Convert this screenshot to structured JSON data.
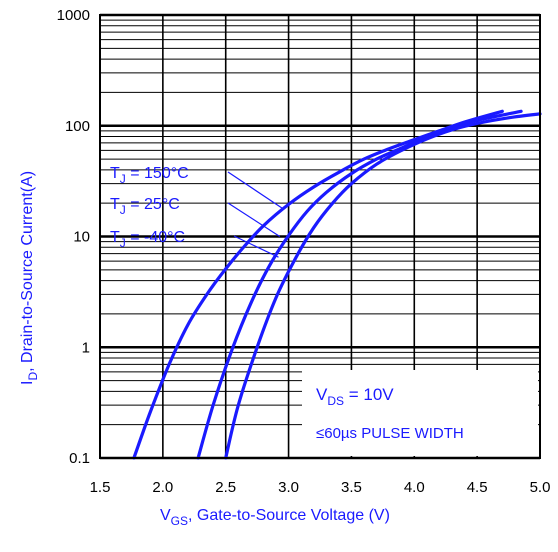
{
  "chart_data": {
    "type": "line",
    "xlabel": {
      "main": "V",
      "sub": "GS",
      "rest": ", Gate-to-Source Voltage (V)"
    },
    "ylabel": {
      "main": "I",
      "sub": "D",
      "rest": ", Drain-to-Source Current(A)"
    },
    "xlim": [
      1.5,
      5.0
    ],
    "ylim": [
      0.1,
      1000
    ],
    "yscale": "log",
    "xticks": [
      "1.5",
      "2.0",
      "2.5",
      "3.0",
      "3.5",
      "4.0",
      "4.5",
      "5.0"
    ],
    "xtick_values": [
      1.5,
      2.0,
      2.5,
      3.0,
      3.5,
      4.0,
      4.5,
      5.0
    ],
    "yticks": [
      "0.1",
      "1",
      "10",
      "100",
      "1000"
    ],
    "ytick_values": [
      0.1,
      1,
      10,
      100,
      1000
    ],
    "grid": true,
    "series_color": "#1a1aff",
    "series": [
      {
        "label": {
          "pre": "T",
          "sub": "J",
          "post": " = 150°C"
        },
        "x": [
          1.77,
          1.9,
          2.05,
          2.2,
          2.35,
          2.5,
          2.65,
          2.8,
          3.0,
          3.2,
          3.4,
          3.6,
          3.8,
          4.0,
          4.2,
          4.4,
          4.7
        ],
        "y": [
          0.1,
          0.26,
          0.7,
          1.6,
          3.0,
          5.1,
          8.2,
          12.5,
          19.5,
          28,
          38,
          50,
          62,
          75,
          90,
          108,
          135
        ]
      },
      {
        "label": {
          "pre": "T",
          "sub": "J",
          "post": " = 25°C"
        },
        "x": [
          2.28,
          2.4,
          2.55,
          2.7,
          2.85,
          3.0,
          3.15,
          3.3,
          3.5,
          3.7,
          3.9,
          4.1,
          4.3,
          4.5,
          4.85
        ],
        "y": [
          0.1,
          0.3,
          0.95,
          2.5,
          5.5,
          10.2,
          17,
          25,
          37,
          50,
          63,
          80,
          97,
          112,
          135
        ]
      },
      {
        "label": {
          "pre": "T",
          "sub": "J",
          "post": " = -40°C"
        },
        "x": [
          2.5,
          2.6,
          2.75,
          2.9,
          3.05,
          3.2,
          3.35,
          3.5,
          3.7,
          3.9,
          4.1,
          4.3,
          4.5,
          4.75,
          5.0
        ],
        "y": [
          0.1,
          0.3,
          1.0,
          2.8,
          6.2,
          12,
          20,
          30,
          45,
          60,
          76,
          92,
          105,
          118,
          128
        ]
      }
    ],
    "conditions": {
      "vds": {
        "main": "V",
        "sub": "DS",
        "rest": " = 10V"
      },
      "pulse": "≤60µs PULSE WIDTH"
    }
  }
}
